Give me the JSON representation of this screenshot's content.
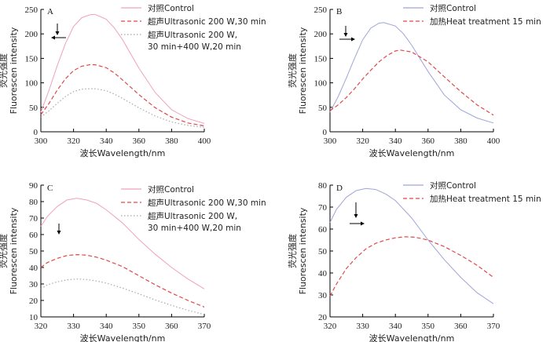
{
  "chart_data": [
    {
      "type": "line",
      "panel_label": "A",
      "xlabel": "波长Wavelength/nm",
      "ylabel_cn": "荧光强度",
      "ylabel_en": "Fluorescen intensity",
      "xlim": [
        300,
        400
      ],
      "ylim": [
        0,
        250
      ],
      "xticks": [
        300,
        320,
        340,
        360,
        380,
        400
      ],
      "yticks": [
        0,
        50,
        100,
        150,
        200,
        250
      ],
      "annotation": "down arrow + left arrow (intensity decrease, blue shift)",
      "series": [
        {
          "name": "对照Control",
          "legend": [
            "对照Control"
          ],
          "style": "solid",
          "color": "#f0a0c0",
          "x": [
            300,
            305,
            310,
            315,
            320,
            325,
            330,
            333,
            340,
            345,
            350,
            360,
            370,
            380,
            390,
            400
          ],
          "y": [
            40,
            85,
            135,
            180,
            215,
            233,
            239,
            240,
            230,
            212,
            188,
            130,
            80,
            45,
            27,
            17
          ]
        },
        {
          "name": "超声Ultrasonic 200 W,30 min",
          "legend": [
            "超声Ultrasonic 200 W,30 min"
          ],
          "style": "dash",
          "color": "#e04848",
          "x": [
            300,
            305,
            310,
            315,
            320,
            325,
            330,
            333,
            340,
            345,
            350,
            360,
            370,
            380,
            390,
            400
          ],
          "y": [
            35,
            58,
            85,
            108,
            125,
            134,
            137,
            137,
            131,
            120,
            106,
            76,
            49,
            30,
            18,
            12
          ]
        },
        {
          "name": "超声Ultrasonic 200 W, 30 min+400 W,20 min",
          "legend": [
            "超声Ultrasonic 200 W,",
            "30 min+400 W,20 min"
          ],
          "style": "dot",
          "color": "#a8a8a8",
          "x": [
            300,
            305,
            310,
            315,
            320,
            325,
            330,
            333,
            340,
            345,
            350,
            360,
            370,
            380,
            390,
            400
          ],
          "y": [
            30,
            43,
            58,
            72,
            82,
            87,
            88,
            88,
            84,
            77,
            68,
            49,
            32,
            20,
            13,
            9
          ]
        }
      ]
    },
    {
      "type": "line",
      "panel_label": "B",
      "xlabel": "波长Wavelength/nm",
      "ylabel_cn": "荧光强度",
      "ylabel_en": "Fluorescen intensity",
      "xlim": [
        300,
        400
      ],
      "ylim": [
        0,
        250
      ],
      "xticks": [
        300,
        320,
        340,
        360,
        380,
        400
      ],
      "yticks": [
        0,
        50,
        100,
        150,
        200,
        250
      ],
      "annotation": "down arrow + right arrow (intensity decrease, red shift)",
      "series": [
        {
          "name": "对照Control",
          "legend": [
            "对照Control"
          ],
          "style": "solid",
          "color": "#a0a4d8",
          "x": [
            300,
            305,
            310,
            315,
            320,
            325,
            330,
            333,
            340,
            345,
            350,
            360,
            370,
            380,
            390,
            400
          ],
          "y": [
            40,
            72,
            110,
            150,
            188,
            212,
            222,
            223,
            216,
            200,
            177,
            123,
            75,
            45,
            28,
            18
          ]
        },
        {
          "name": "加热Heat treatment 15 min",
          "legend": [
            "加热Heat treatment 15 min"
          ],
          "style": "dash",
          "color": "#e04848",
          "x": [
            300,
            305,
            310,
            315,
            320,
            325,
            330,
            335,
            340,
            343,
            350,
            360,
            370,
            380,
            390,
            400
          ],
          "y": [
            43,
            55,
            70,
            88,
            108,
            126,
            143,
            156,
            165,
            167,
            163,
            143,
            112,
            82,
            55,
            34
          ]
        }
      ]
    },
    {
      "type": "line",
      "panel_label": "C",
      "xlabel": "波长Wavelength/nm",
      "ylabel_cn": "荧光强度",
      "ylabel_en": "Fluorescen intensity",
      "xlim": [
        320,
        370
      ],
      "ylim": [
        10,
        90
      ],
      "xticks": [
        320,
        330,
        340,
        350,
        360,
        370
      ],
      "yticks": [
        10,
        20,
        30,
        40,
        50,
        60,
        70,
        80,
        90
      ],
      "annotation": "down arrow (intensity decrease)",
      "series": [
        {
          "name": "对照Control",
          "legend": [
            "对照Control"
          ],
          "style": "solid",
          "color": "#f0a0c0",
          "x": [
            320,
            322,
            325,
            328,
            331,
            334,
            337,
            340,
            345,
            350,
            355,
            360,
            365,
            370
          ],
          "y": [
            65,
            71,
            77,
            81,
            82,
            81,
            79,
            75,
            67,
            57,
            48,
            40,
            33,
            27
          ]
        },
        {
          "name": "超声Ultrasonic 200 W,30 min",
          "legend": [
            "超声Ultrasonic 200 W,30 min"
          ],
          "style": "dash",
          "color": "#e04848",
          "x": [
            320,
            322,
            325,
            328,
            331,
            334,
            337,
            340,
            345,
            350,
            355,
            360,
            365,
            370
          ],
          "y": [
            40,
            43,
            45.5,
            47.3,
            47.8,
            47.5,
            46.3,
            44.5,
            40.5,
            35,
            29.5,
            24.5,
            20,
            16
          ]
        },
        {
          "name": "超声Ultrasonic 200 W, 30 min+400 W,20 min",
          "legend": [
            "超声Ultrasonic 200 W,",
            "30 min+400 W,20 min"
          ],
          "style": "dot",
          "color": "#a8a8a8",
          "x": [
            320,
            322,
            325,
            328,
            331,
            334,
            337,
            340,
            345,
            350,
            355,
            360,
            365,
            370
          ],
          "y": [
            27,
            29.5,
            31.3,
            32.5,
            33,
            32.7,
            31.8,
            30.5,
            27.5,
            24,
            20.3,
            17,
            14,
            11.5
          ]
        }
      ]
    },
    {
      "type": "line",
      "panel_label": "D",
      "xlabel": "波长Wavelength/nm",
      "ylabel_cn": "荧光强度",
      "ylabel_en": "Fluorescen intensity",
      "xlim": [
        320,
        370
      ],
      "ylim": [
        20,
        80
      ],
      "xticks": [
        320,
        330,
        340,
        350,
        360,
        370
      ],
      "yticks": [
        20,
        30,
        40,
        50,
        60,
        70,
        80
      ],
      "annotation": "down arrow + right arrow (intensity decrease, red shift)",
      "series": [
        {
          "name": "对照Control",
          "legend": [
            "对照Control"
          ],
          "style": "solid",
          "color": "#a0a4d8",
          "x": [
            320,
            322,
            325,
            328,
            331,
            334,
            337,
            340,
            345,
            350,
            355,
            360,
            365,
            370
          ],
          "y": [
            63,
            69,
            74.5,
            77.5,
            78.5,
            78,
            76,
            73,
            65,
            55,
            46,
            38,
            31,
            26
          ]
        },
        {
          "name": "加热Heat treatment 15 min",
          "legend": [
            "加热Heat treatment 15 min"
          ],
          "style": "dash",
          "color": "#e04848",
          "x": [
            320,
            322,
            325,
            328,
            331,
            334,
            337,
            340,
            343,
            346,
            350,
            355,
            360,
            365,
            370
          ],
          "y": [
            29.5,
            35,
            42,
            47,
            51,
            53.5,
            55,
            56,
            56.5,
            56.3,
            55,
            52,
            48,
            43.5,
            38
          ]
        }
      ]
    }
  ]
}
